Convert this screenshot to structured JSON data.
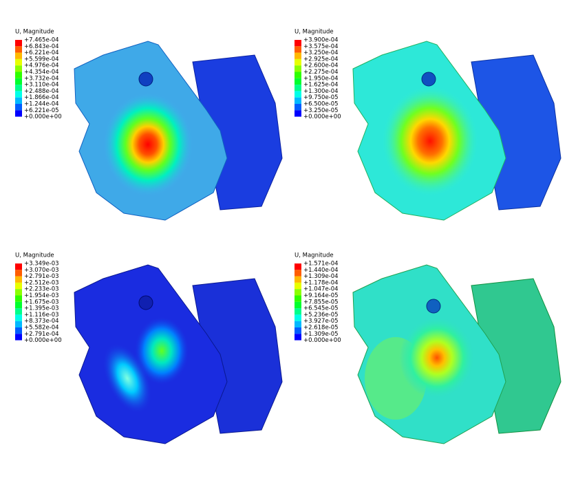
{
  "panels": [
    {
      "legend": {
        "title": "U, Magnitude",
        "labels": [
          "+7.465e-04",
          "+6.843e-04",
          "+6.221e-04",
          "+5.599e-04",
          "+4.976e-04",
          "+4.354e-04",
          "+3.732e-04",
          "+3.110e-04",
          "+2.488e-04",
          "+1.866e-04",
          "+1.244e-04",
          "+6.221e-05",
          "+0.000e+00"
        ]
      }
    },
    {
      "legend": {
        "title": "U, Magnitude",
        "labels": [
          "+3.900e-04",
          "+3.575e-04",
          "+3.250e-04",
          "+2.925e-04",
          "+2.600e-04",
          "+2.275e-04",
          "+1.950e-04",
          "+1.625e-04",
          "+1.300e-04",
          "+9.750e-05",
          "+6.500e-05",
          "+3.250e-05",
          "+0.000e+00"
        ]
      }
    },
    {
      "legend": {
        "title": "U, Magnitude",
        "labels": [
          "+3.349e-03",
          "+3.070e-03",
          "+2.791e-03",
          "+2.512e-03",
          "+2.233e-03",
          "+1.954e-03",
          "+1.675e-03",
          "+1.395e-03",
          "+1.116e-03",
          "+8.373e-04",
          "+5.582e-04",
          "+2.791e-04",
          "+0.000e+00"
        ]
      }
    },
    {
      "legend": {
        "title": "U, Magnitude",
        "labels": [
          "+1.571e-04",
          "+1.440e-04",
          "+1.309e-04",
          "+1.178e-04",
          "+1.047e-04",
          "+9.164e-05",
          "+7.855e-05",
          "+6.545e-05",
          "+5.236e-05",
          "+3.927e-05",
          "+2.618e-05",
          "+1.309e-05",
          "+0.000e+00"
        ]
      }
    }
  ]
}
